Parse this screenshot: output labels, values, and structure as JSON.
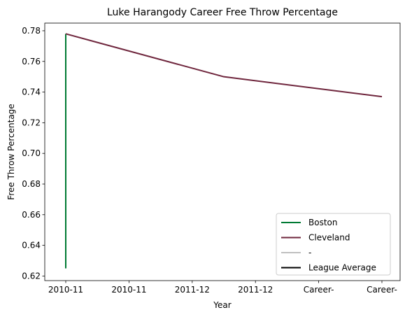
{
  "chart_data": {
    "type": "line",
    "title": "Luke Harangody Career Free Throw Percentage",
    "xlabel": "Year",
    "ylabel": "Free Throw Percentage",
    "categories": [
      "2010-11",
      "2010-11",
      "2011-12",
      "2011-12",
      "Career-",
      "Career-"
    ],
    "ylim": [
      0.617,
      0.785
    ],
    "yticks": [
      0.62,
      0.64,
      0.66,
      0.68,
      0.7,
      0.72,
      0.74,
      0.76,
      0.78
    ],
    "ytick_labels": [
      "0.62",
      "0.64",
      "0.66",
      "0.68",
      "0.70",
      "0.72",
      "0.74",
      "0.76",
      "0.78"
    ],
    "grid": false,
    "legend_position": "lower-right",
    "series": [
      {
        "name": "Boston",
        "color": "#007a33",
        "points": [
          [
            0,
            0.625
          ],
          [
            0,
            0.778
          ]
        ]
      },
      {
        "name": "Cleveland",
        "color": "#6f263d",
        "points": [
          [
            0,
            0.778
          ],
          [
            2.5,
            0.75
          ],
          [
            5,
            0.737
          ]
        ]
      },
      {
        "name": "-",
        "color": "#c0c0c0",
        "points": []
      },
      {
        "name": "League Average",
        "color": "#000000",
        "points": []
      }
    ]
  }
}
